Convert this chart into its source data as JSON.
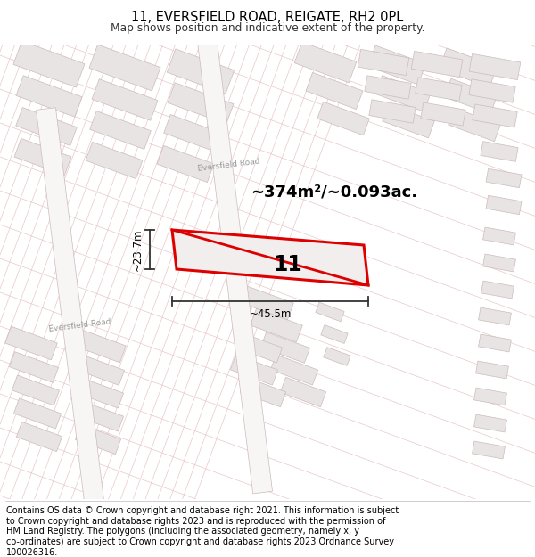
{
  "title_line1": "11, EVERSFIELD ROAD, REIGATE, RH2 0PL",
  "title_line2": "Map shows position and indicative extent of the property.",
  "area_label": "~374m²/~0.093ac.",
  "width_label": "~45.5m",
  "height_label": "~23.7m",
  "property_number": "11",
  "road_label_upper": "Eversfield Road",
  "road_label_lower": "Eversfield Road",
  "red_color": "#dd0000",
  "footer_lines": [
    "Contains OS data © Crown copyright and database right 2021. This information is subject",
    "to Crown copyright and database rights 2023 and is reproduced with the permission of",
    "HM Land Registry. The polygons (including the associated geometry, namely x, y",
    "co-ordinates) are subject to Crown copyright and database rights 2023 Ordnance Survey",
    "100026316."
  ],
  "title_fontsize": 10.5,
  "subtitle_fontsize": 8.8,
  "footer_fontsize": 7.0,
  "figsize": [
    6.0,
    6.25
  ],
  "dpi": 100,
  "map_bg": "#f5f3f3",
  "block_fill": "#e8e4e4",
  "block_edge": "#ccbbbb",
  "road_fill": "#f8f5f5",
  "grid_color": "#e8c8c8",
  "gray_line_color": "#b8b8b8"
}
